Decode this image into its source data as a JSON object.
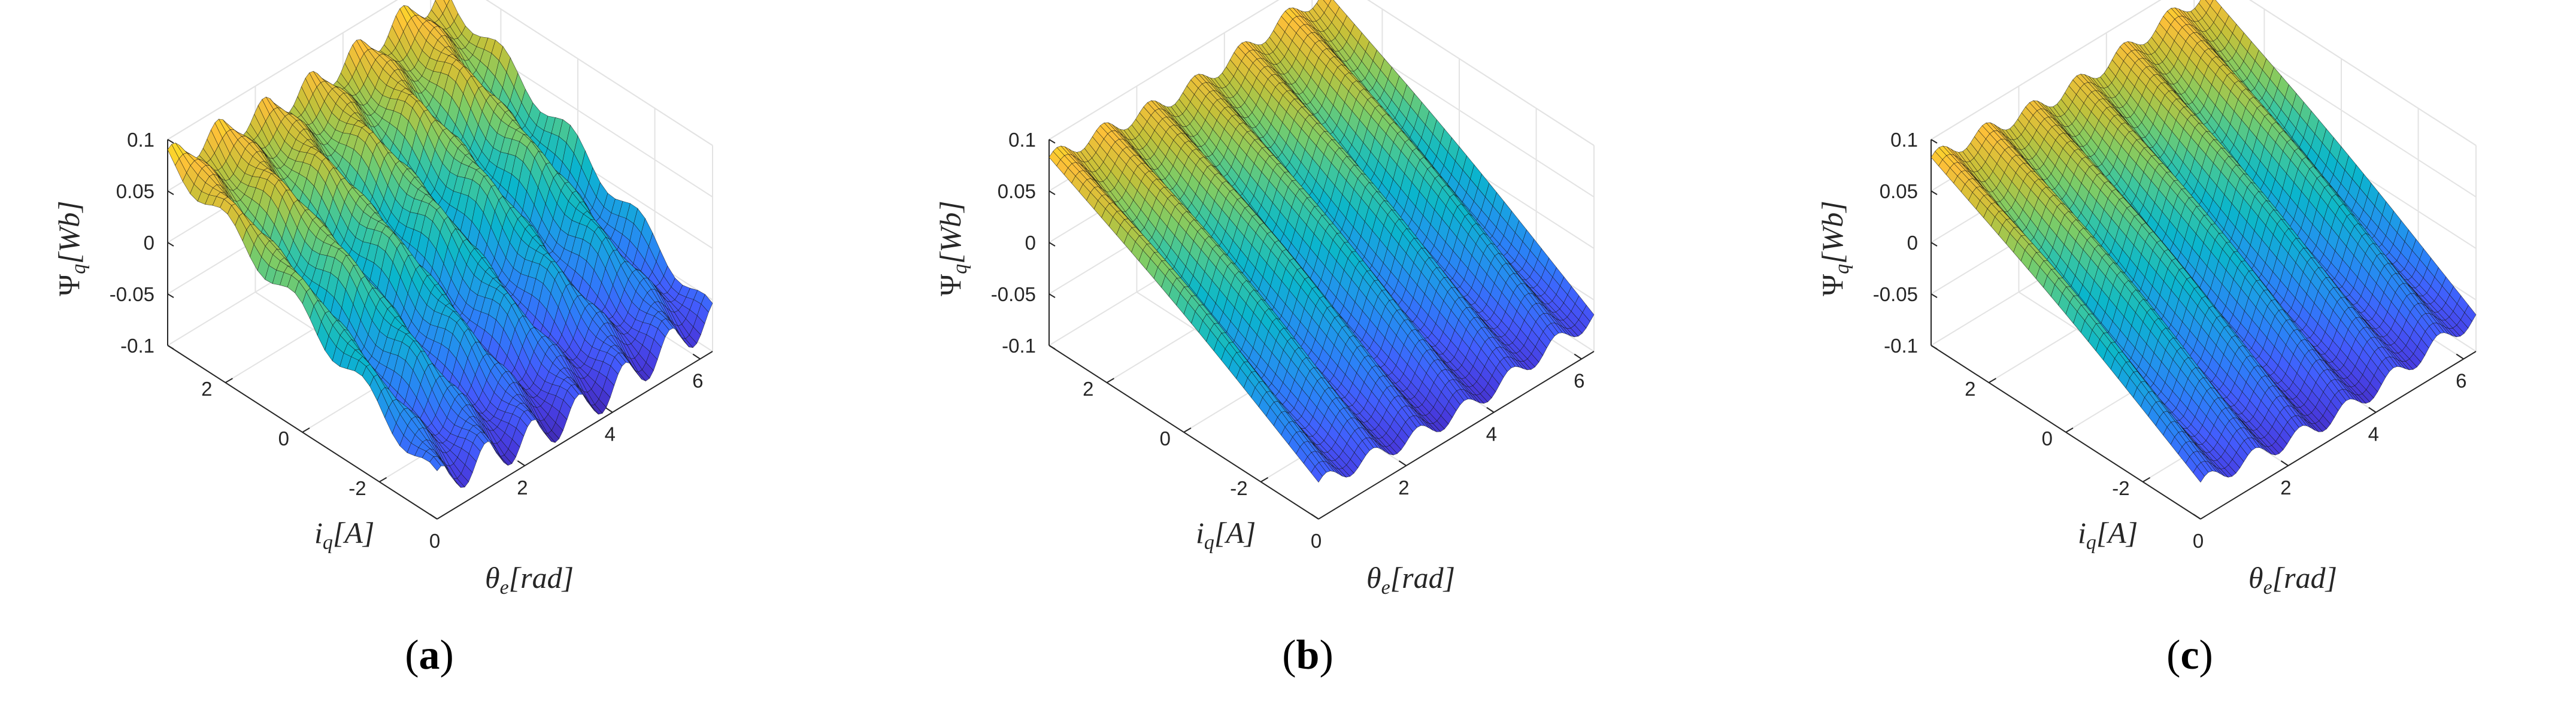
{
  "figure": {
    "captions": [
      {
        "open": "(",
        "letter": "a",
        "close": ")"
      },
      {
        "open": "(",
        "letter": "b",
        "close": ")"
      },
      {
        "open": "(",
        "letter": "c",
        "close": ")"
      }
    ]
  },
  "chart_data": [
    {
      "type": "surface",
      "xlabel": {
        "sym": "θ",
        "sub": "e",
        "unit": "[rad]"
      },
      "ylabel": {
        "sym": "i",
        "sub": "q",
        "unit": "[A]"
      },
      "zlabel": {
        "sym": "Ψ",
        "sub": "q",
        "unit": "[Wb]"
      },
      "xticks": [
        "0",
        "2",
        "4",
        "6"
      ],
      "yticks": [
        "-2",
        "0",
        "2"
      ],
      "zticks": [
        "-0.1",
        "-0.05",
        "0",
        "0.05",
        "0.1"
      ],
      "xlim": [
        0,
        6.2832
      ],
      "ylim": [
        -3.5,
        3.5
      ],
      "zlim": [
        -0.1,
        0.1
      ],
      "colormap": "parula",
      "grid": true,
      "surface_model": {
        "slope_per_A": 0.021,
        "harmonics_per_rev": 6,
        "ripple_amplitude": 0.025,
        "cross_ripple": 0.011
      }
    },
    {
      "type": "surface",
      "xlabel": {
        "sym": "θ",
        "sub": "e",
        "unit": "[rad]"
      },
      "ylabel": {
        "sym": "i",
        "sub": "q",
        "unit": "[A]"
      },
      "zlabel": {
        "sym": "Ψ",
        "sub": "q",
        "unit": "[Wb]"
      },
      "xticks": [
        "0",
        "2",
        "4",
        "6"
      ],
      "yticks": [
        "-2",
        "0",
        "2"
      ],
      "zticks": [
        "-0.1",
        "-0.05",
        "0",
        "0.05",
        "0.1"
      ],
      "xlim": [
        0,
        6.2832
      ],
      "ylim": [
        -3.5,
        3.5
      ],
      "zlim": [
        -0.1,
        0.1
      ],
      "colormap": "parula",
      "grid": true,
      "surface_model": {
        "slope_per_A": 0.021,
        "harmonics_per_rev": 6,
        "ripple_amplitude": 0.022,
        "cross_ripple": 0.0
      }
    },
    {
      "type": "surface",
      "xlabel": {
        "sym": "θ",
        "sub": "e",
        "unit": "[rad]"
      },
      "ylabel": {
        "sym": "i",
        "sub": "q",
        "unit": "[A]"
      },
      "zlabel": {
        "sym": "Ψ",
        "sub": "q",
        "unit": "[Wb]"
      },
      "xticks": [
        "0",
        "2",
        "4",
        "6"
      ],
      "yticks": [
        "-2",
        "0",
        "2"
      ],
      "zticks": [
        "-0.1",
        "-0.05",
        "0",
        "0.05",
        "0.1"
      ],
      "xlim": [
        0,
        6.2832
      ],
      "ylim": [
        -3.5,
        3.5
      ],
      "zlim": [
        -0.1,
        0.1
      ],
      "colormap": "parula",
      "grid": true,
      "surface_model": {
        "slope_per_A": 0.021,
        "harmonics_per_rev": 6,
        "ripple_amplitude": 0.022,
        "cross_ripple": 0.0
      }
    }
  ]
}
